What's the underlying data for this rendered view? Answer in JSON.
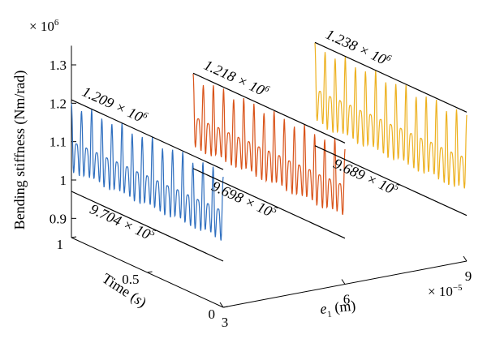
{
  "chart_data": {
    "type": "line",
    "subtype": "3d-waterfall",
    "xlabel_prefix": "e",
    "xlabel_sub": "1",
    "xlabel_suffix": " (m)",
    "ylabel": "Time (s)",
    "zlabel": "Bending stiffness (Nm/rad)",
    "x_ticks": [
      "3",
      "6",
      "9"
    ],
    "x_tick_values": [
      3,
      6,
      9
    ],
    "x_multiplier_base": "× 10",
    "x_multiplier_exp": "−5",
    "y_ticks": [
      "0",
      "0.5",
      "1"
    ],
    "y_tick_values": [
      0,
      0.5,
      1
    ],
    "z_ticks": [
      "0.9",
      "1",
      "1.1",
      "1.2",
      "1.3"
    ],
    "z_tick_values": [
      0.9,
      1.0,
      1.1,
      1.2,
      1.3
    ],
    "z_multiplier_base": "× 10",
    "z_multiplier_exp": "6",
    "xlim": [
      3,
      9
    ],
    "ylim": [
      0,
      1
    ],
    "zlim": [
      0.85,
      1.35
    ],
    "grid": false,
    "series": [
      {
        "x": 3,
        "color": "#2f6fbf",
        "max_value": 1209000,
        "min_value": 970400,
        "max_label_mant": "1.209 × 10",
        "max_label_exp": "6",
        "min_label_mant": "9.704 × 10",
        "min_label_exp": "5",
        "cycles": 15
      },
      {
        "x": 6,
        "color": "#d95319",
        "max_value": 1218000,
        "min_value": 969800,
        "max_label_mant": "1.218 × 10",
        "max_label_exp": "6",
        "min_label_mant": "9.698 × 10",
        "min_label_exp": "5",
        "cycles": 15
      },
      {
        "x": 9,
        "color": "#edb120",
        "max_value": 1238000,
        "min_value": 968900,
        "max_label_mant": "1.238 × 10",
        "max_label_exp": "6",
        "min_label_mant": "9.689 × 10",
        "min_label_exp": "5",
        "cycles": 15
      }
    ]
  }
}
